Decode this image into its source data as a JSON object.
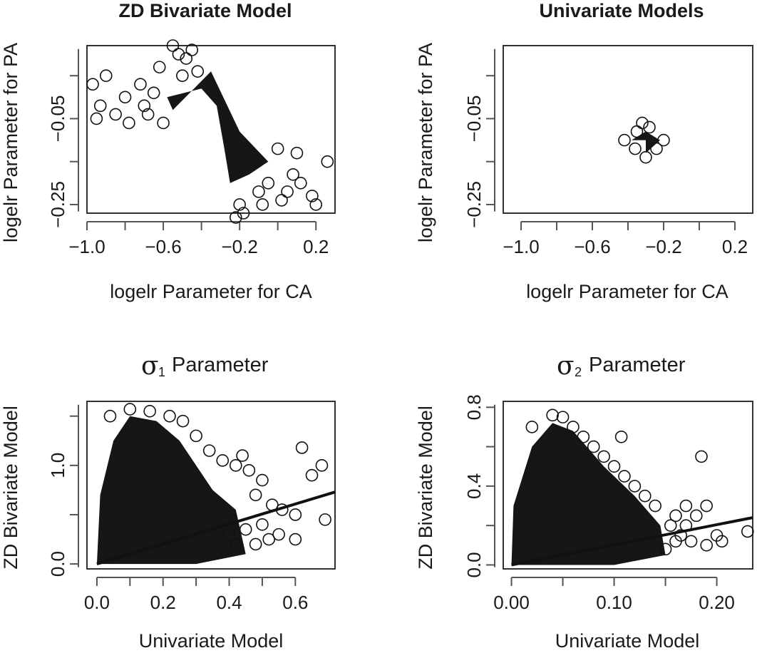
{
  "chart_data": [
    {
      "id": "p1",
      "type": "scatter",
      "title": "ZD Bivariate Model",
      "xlabel": "logelr Parameter for CA",
      "ylabel": "logelr Parameter for PA",
      "xlim": [
        -1.0,
        0.3
      ],
      "ylim": [
        -0.27,
        0.12
      ],
      "xticks": [
        "−1.0",
        "−0.6",
        "−0.2",
        "0.2"
      ],
      "yticks": [
        "−0.25",
        "−0.05"
      ],
      "grid": false,
      "dense_core": [
        [
          -0.58,
          0.0
        ],
        [
          -0.4,
          0.02
        ],
        [
          -0.32,
          -0.02
        ],
        [
          -0.28,
          -0.12
        ],
        [
          -0.25,
          -0.2
        ],
        [
          -0.15,
          -0.18
        ],
        [
          -0.05,
          -0.15
        ],
        [
          -0.2,
          -0.08
        ],
        [
          -0.35,
          0.06
        ],
        [
          -0.55,
          -0.03
        ]
      ],
      "outliers": [
        [
          -0.95,
          -0.05
        ],
        [
          -0.93,
          -0.02
        ],
        [
          -0.97,
          0.03
        ],
        [
          -0.9,
          0.05
        ],
        [
          -0.85,
          -0.04
        ],
        [
          -0.8,
          0.0
        ],
        [
          -0.78,
          -0.06
        ],
        [
          -0.72,
          0.03
        ],
        [
          -0.68,
          -0.04
        ],
        [
          -0.62,
          0.07
        ],
        [
          -0.55,
          0.12
        ],
        [
          -0.52,
          0.1
        ],
        [
          -0.48,
          0.09
        ],
        [
          -0.45,
          0.11
        ],
        [
          -0.5,
          0.05
        ],
        [
          -0.42,
          0.06
        ],
        [
          -0.65,
          0.01
        ],
        [
          -0.6,
          -0.06
        ],
        [
          -0.7,
          -0.02
        ],
        [
          -0.1,
          -0.22
        ],
        [
          -0.05,
          -0.2
        ],
        [
          0.02,
          -0.24
        ],
        [
          0.05,
          -0.22
        ],
        [
          0.12,
          -0.2
        ],
        [
          0.18,
          -0.23
        ],
        [
          0.2,
          -0.25
        ],
        [
          0.26,
          -0.15
        ],
        [
          0.1,
          -0.13
        ],
        [
          0.0,
          -0.12
        ],
        [
          -0.2,
          -0.25
        ],
        [
          -0.18,
          -0.27
        ],
        [
          -0.22,
          -0.28
        ],
        [
          0.08,
          -0.18
        ],
        [
          -0.08,
          -0.25
        ]
      ]
    },
    {
      "id": "p2",
      "type": "scatter",
      "title": "Univariate Models",
      "xlabel": "logelr Parameter for CA",
      "ylabel": "logelr Parameter for PA",
      "xlim": [
        -1.1,
        0.3
      ],
      "ylim": [
        -0.27,
        0.12
      ],
      "xticks": [
        "−1.0",
        "−0.6",
        "−0.2",
        "0.2"
      ],
      "yticks": [
        "−0.25",
        "−0.05"
      ],
      "grid": false,
      "dense_core": [
        [
          -0.38,
          -0.1
        ],
        [
          -0.3,
          -0.08
        ],
        [
          -0.22,
          -0.1
        ],
        [
          -0.3,
          -0.13
        ],
        [
          -0.3,
          -0.1
        ]
      ],
      "outliers": [
        [
          -0.42,
          -0.1
        ],
        [
          -0.35,
          -0.08
        ],
        [
          -0.32,
          -0.06
        ],
        [
          -0.28,
          -0.07
        ],
        [
          -0.2,
          -0.1
        ],
        [
          -0.24,
          -0.12
        ],
        [
          -0.3,
          -0.14
        ],
        [
          -0.36,
          -0.12
        ]
      ]
    },
    {
      "id": "p3",
      "type": "scatter",
      "title_symbol": "σ",
      "title_sub": "1",
      "title_rest": " Parameter",
      "xlabel": "Univariate Model",
      "ylabel": "ZD Bivariate Model",
      "xlim": [
        -0.03,
        0.72
      ],
      "ylim": [
        -0.05,
        1.65
      ],
      "xticks": [
        0.0,
        0.2,
        0.4,
        0.6
      ],
      "yticks": [
        0.0,
        1.0
      ],
      "grid": false,
      "fit_line": [
        [
          0.0,
          0.0
        ],
        [
          0.72,
          0.73
        ]
      ],
      "dense_core": [
        [
          0.0,
          0.0
        ],
        [
          0.01,
          0.7
        ],
        [
          0.05,
          1.25
        ],
        [
          0.1,
          1.5
        ],
        [
          0.18,
          1.45
        ],
        [
          0.25,
          1.25
        ],
        [
          0.35,
          0.75
        ],
        [
          0.42,
          0.55
        ],
        [
          0.45,
          0.1
        ],
        [
          0.3,
          0.0
        ]
      ],
      "outliers": [
        [
          0.04,
          1.5
        ],
        [
          0.1,
          1.57
        ],
        [
          0.16,
          1.55
        ],
        [
          0.22,
          1.5
        ],
        [
          0.26,
          1.45
        ],
        [
          0.3,
          1.3
        ],
        [
          0.34,
          1.15
        ],
        [
          0.38,
          1.05
        ],
        [
          0.42,
          1.0
        ],
        [
          0.44,
          1.1
        ],
        [
          0.46,
          0.95
        ],
        [
          0.5,
          0.85
        ],
        [
          0.48,
          0.7
        ],
        [
          0.53,
          0.6
        ],
        [
          0.56,
          0.55
        ],
        [
          0.6,
          0.5
        ],
        [
          0.62,
          1.18
        ],
        [
          0.65,
          0.9
        ],
        [
          0.68,
          1.0
        ],
        [
          0.69,
          0.45
        ],
        [
          0.45,
          0.35
        ],
        [
          0.5,
          0.4
        ],
        [
          0.55,
          0.3
        ],
        [
          0.6,
          0.25
        ],
        [
          0.48,
          0.2
        ],
        [
          0.52,
          0.25
        ],
        [
          0.42,
          0.2
        ],
        [
          0.4,
          0.3
        ]
      ]
    },
    {
      "id": "p4",
      "type": "scatter",
      "title_symbol": "σ",
      "title_sub": "2",
      "title_rest": " Parameter",
      "xlabel": "Univariate Model",
      "ylabel": "ZD Bivariate Model",
      "xlim": [
        -0.008,
        0.235
      ],
      "ylim": [
        -0.02,
        0.83
      ],
      "xticks": [
        "0.00",
        "0.10",
        "0.20"
      ],
      "yticks": [
        0.0,
        0.4,
        0.8
      ],
      "grid": false,
      "fit_line": [
        [
          0.0,
          0.0
        ],
        [
          0.235,
          0.24
        ]
      ],
      "dense_core": [
        [
          0.0,
          0.0
        ],
        [
          0.002,
          0.3
        ],
        [
          0.02,
          0.6
        ],
        [
          0.04,
          0.72
        ],
        [
          0.06,
          0.68
        ],
        [
          0.09,
          0.5
        ],
        [
          0.12,
          0.35
        ],
        [
          0.145,
          0.2
        ],
        [
          0.15,
          0.05
        ],
        [
          0.1,
          0.0
        ]
      ],
      "outliers": [
        [
          0.02,
          0.7
        ],
        [
          0.04,
          0.76
        ],
        [
          0.05,
          0.75
        ],
        [
          0.06,
          0.7
        ],
        [
          0.07,
          0.65
        ],
        [
          0.08,
          0.6
        ],
        [
          0.09,
          0.55
        ],
        [
          0.1,
          0.5
        ],
        [
          0.11,
          0.45
        ],
        [
          0.12,
          0.4
        ],
        [
          0.13,
          0.35
        ],
        [
          0.14,
          0.3
        ],
        [
          0.107,
          0.65
        ],
        [
          0.185,
          0.55
        ],
        [
          0.17,
          0.3
        ],
        [
          0.16,
          0.25
        ],
        [
          0.155,
          0.2
        ],
        [
          0.165,
          0.15
        ],
        [
          0.18,
          0.25
        ],
        [
          0.19,
          0.3
        ],
        [
          0.2,
          0.15
        ],
        [
          0.205,
          0.12
        ],
        [
          0.23,
          0.17
        ],
        [
          0.175,
          0.12
        ],
        [
          0.19,
          0.1
        ],
        [
          0.16,
          0.12
        ],
        [
          0.15,
          0.08
        ],
        [
          0.17,
          0.2
        ]
      ]
    }
  ]
}
